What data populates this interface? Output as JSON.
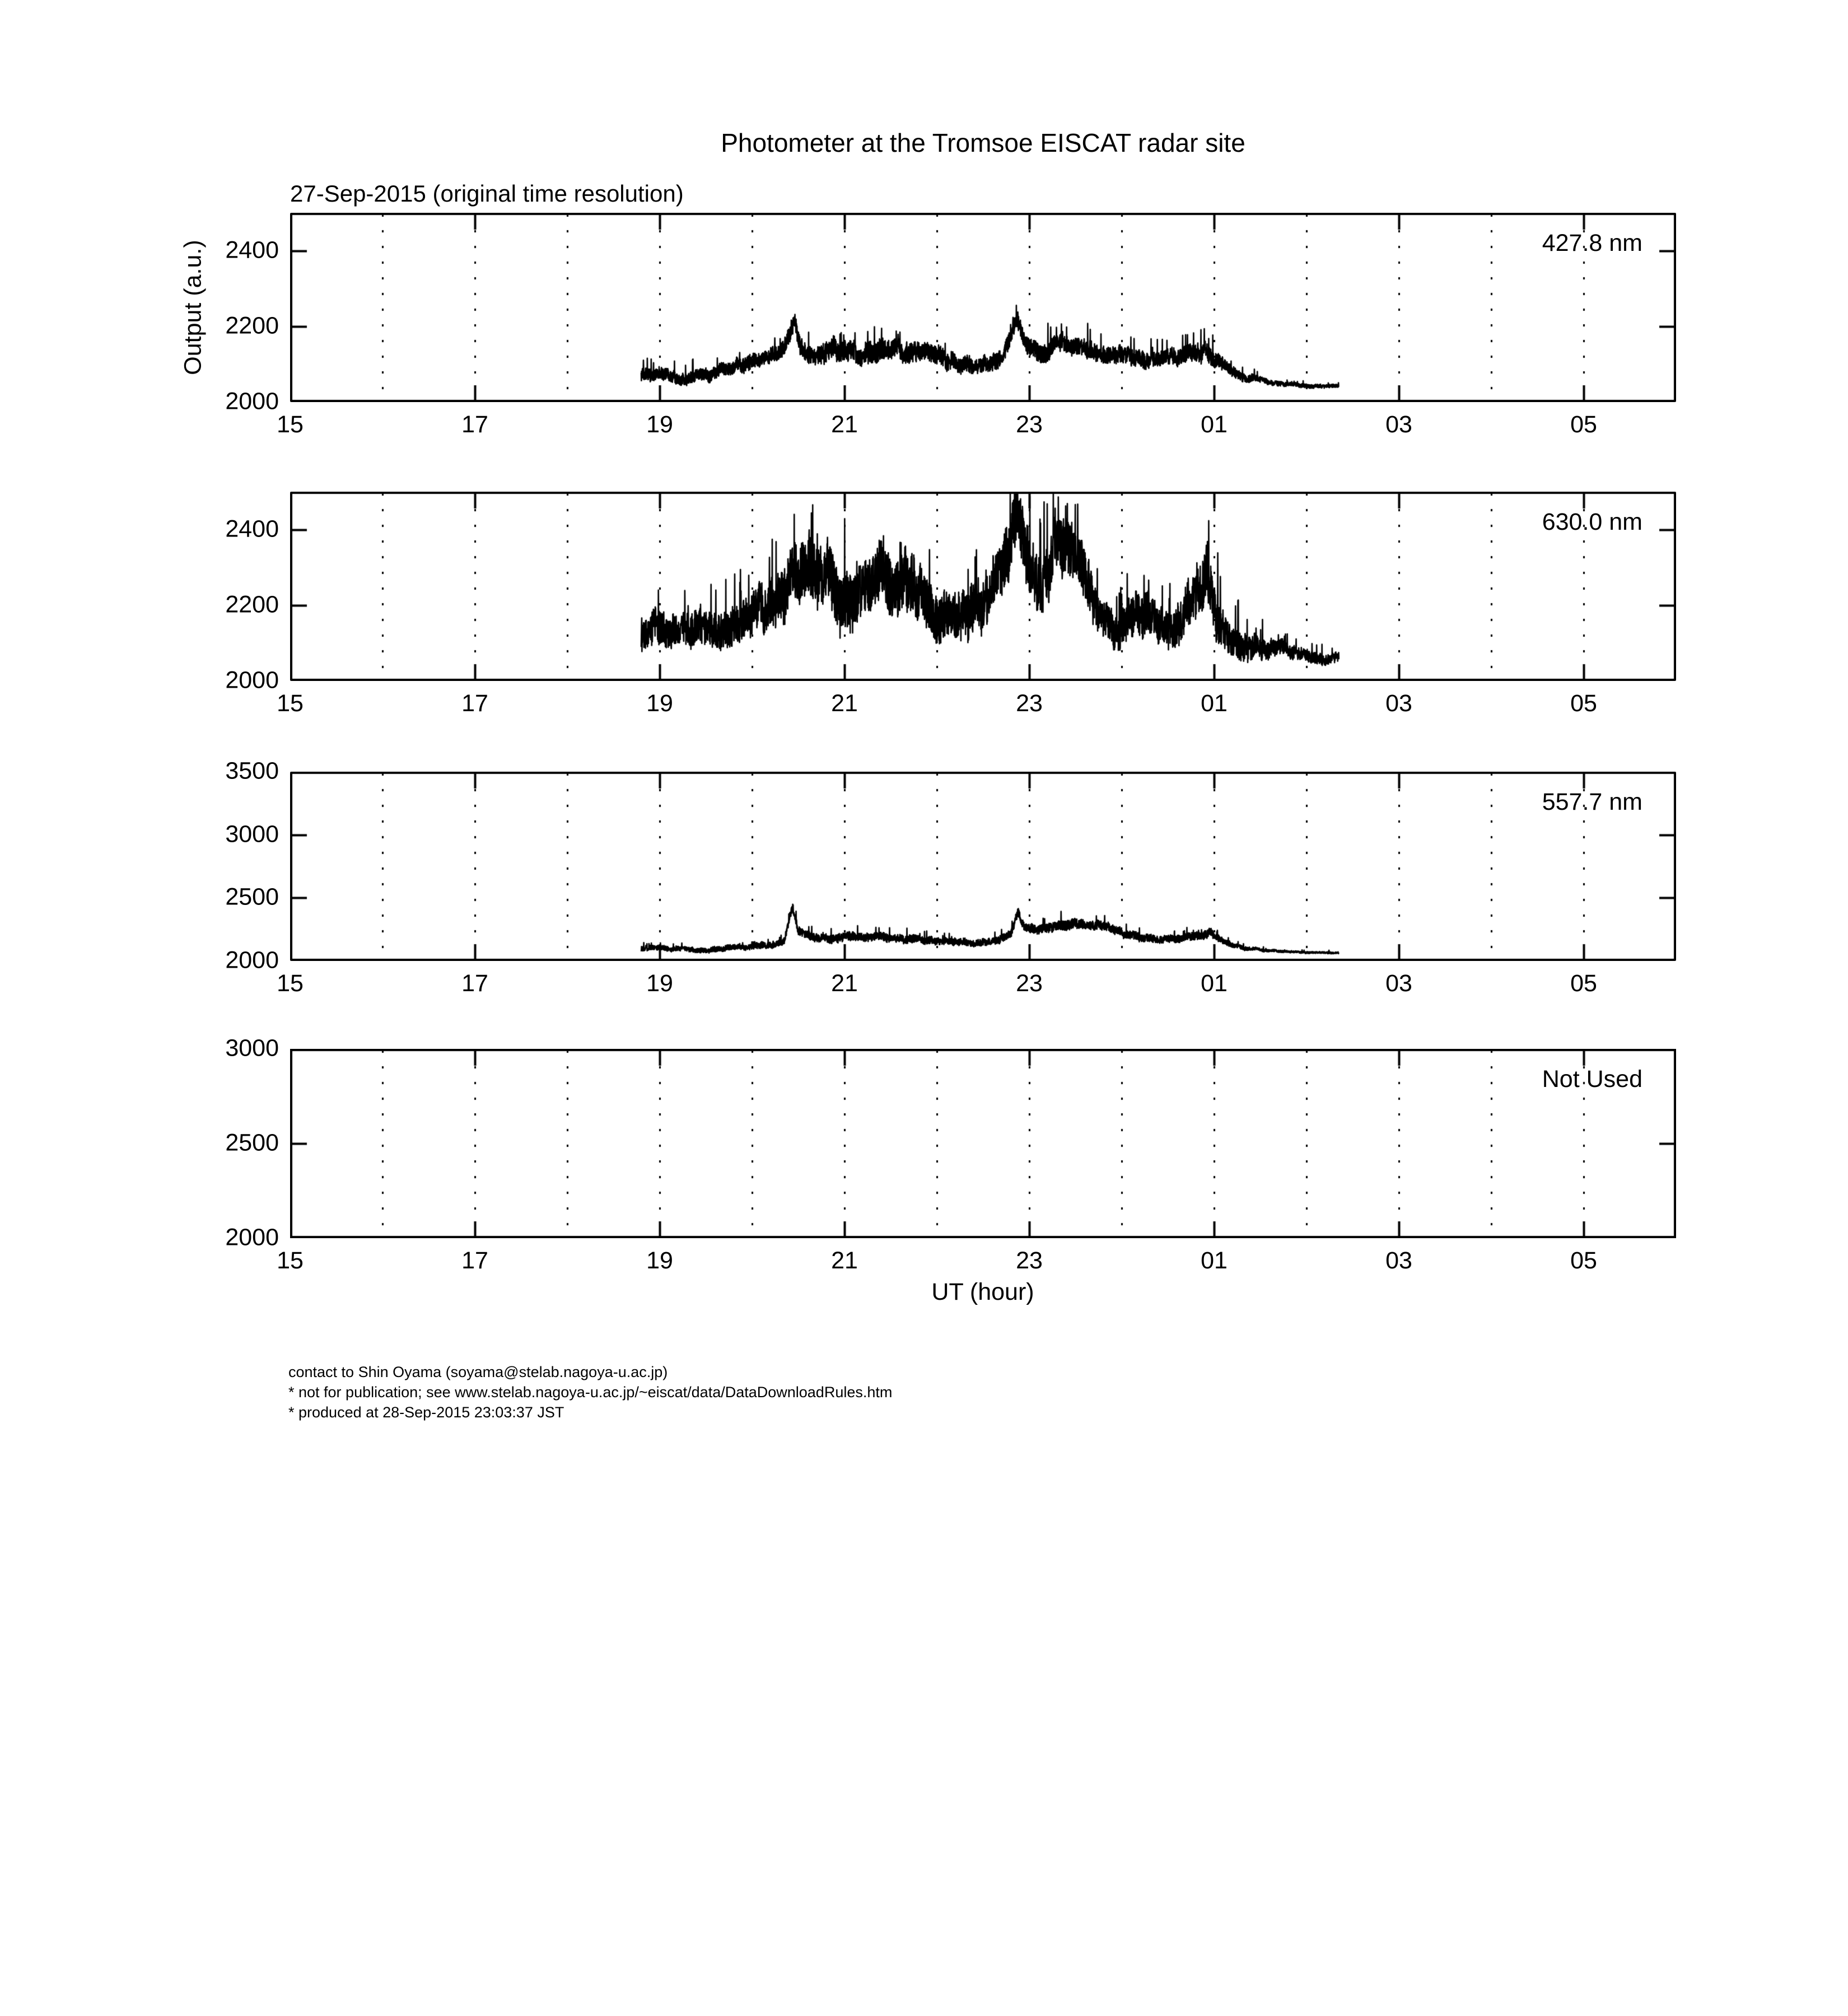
{
  "title": "Photometer at the Tromsoe EISCAT radar site",
  "subtitle": "27-Sep-2015 (original time resolution)",
  "ylabel": "Output (a.u.)",
  "xlabel": "UT (hour)",
  "footer": {
    "line1": "contact to Shin Oyama (soyama@stelab.nagoya-u.ac.jp)",
    "line2": "* not for publication; see www.stelab.nagoya-u.ac.jp/~eiscat/data/DataDownloadRules.htm",
    "line3": "* produced at 28-Sep-2015 23:03:37 JST"
  },
  "colors": {
    "trace": "#000000",
    "axes": "#000000",
    "grid": "#000000",
    "background": "#ffffff"
  },
  "chart_data": [
    {
      "type": "line",
      "panel_label": "427.8 nm",
      "xlim": [
        15,
        30
      ],
      "ylim": [
        2000,
        2500
      ],
      "yticks": [
        2000,
        2200,
        2400
      ],
      "xticks": [
        15,
        17,
        19,
        21,
        23,
        25,
        27,
        29
      ],
      "xtick_labels": [
        "15",
        "17",
        "19",
        "21",
        "23",
        "01",
        "03",
        "05"
      ],
      "grid_hours": [
        16,
        17,
        18,
        19,
        20,
        21,
        22,
        23,
        24,
        25,
        26,
        27,
        28,
        29
      ],
      "grid": "x-dotted",
      "series": {
        "name": "427.8 nm photometer output",
        "unit": "a.u.",
        "time_range_ut": [
          18.8,
          26.35
        ],
        "encoding": "[ut_hour_decimal (>24 = next day), mean_output_au, noise_half_amplitude_au]",
        "control_points": [
          [
            18.8,
            2072,
            20
          ],
          [
            19.1,
            2070,
            18
          ],
          [
            19.4,
            2072,
            18
          ],
          [
            19.7,
            2080,
            20
          ],
          [
            19.95,
            2092,
            22
          ],
          [
            20.15,
            2105,
            24
          ],
          [
            20.32,
            2125,
            26
          ],
          [
            20.42,
            2170,
            30
          ],
          [
            20.46,
            2200,
            20
          ],
          [
            20.52,
            2140,
            28
          ],
          [
            20.7,
            2120,
            30
          ],
          [
            20.9,
            2128,
            32
          ],
          [
            21.1,
            2138,
            32
          ],
          [
            21.3,
            2132,
            34
          ],
          [
            21.5,
            2140,
            30
          ],
          [
            21.7,
            2135,
            30
          ],
          [
            21.9,
            2118,
            28
          ],
          [
            22.1,
            2108,
            26
          ],
          [
            22.3,
            2098,
            26
          ],
          [
            22.5,
            2100,
            26
          ],
          [
            22.65,
            2115,
            26
          ],
          [
            22.78,
            2145,
            28
          ],
          [
            22.87,
            2210,
            22
          ],
          [
            22.95,
            2160,
            28
          ],
          [
            23.1,
            2140,
            30
          ],
          [
            23.3,
            2150,
            28
          ],
          [
            23.5,
            2155,
            26
          ],
          [
            23.7,
            2148,
            26
          ],
          [
            23.9,
            2138,
            26
          ],
          [
            24.1,
            2120,
            26
          ],
          [
            24.3,
            2112,
            24
          ],
          [
            24.5,
            2118,
            24
          ],
          [
            24.7,
            2125,
            26
          ],
          [
            24.9,
            2142,
            28
          ],
          [
            25.0,
            2120,
            24
          ],
          [
            25.15,
            2090,
            18
          ],
          [
            25.35,
            2068,
            12
          ],
          [
            25.6,
            2052,
            8
          ],
          [
            25.9,
            2044,
            6
          ],
          [
            26.35,
            2040,
            5
          ]
        ]
      }
    },
    {
      "type": "line",
      "panel_label": "630.0 nm",
      "xlim": [
        15,
        30
      ],
      "ylim": [
        2000,
        2500
      ],
      "yticks": [
        2000,
        2200,
        2400
      ],
      "xticks": [
        15,
        17,
        19,
        21,
        23,
        25,
        27,
        29
      ],
      "xtick_labels": [
        "15",
        "17",
        "19",
        "21",
        "23",
        "01",
        "03",
        "05"
      ],
      "grid_hours": [
        16,
        17,
        18,
        19,
        20,
        21,
        22,
        23,
        24,
        25,
        26,
        27,
        28,
        29
      ],
      "grid": "x-dotted",
      "series": {
        "name": "630.0 nm photometer output",
        "unit": "a.u.",
        "time_range_ut": [
          18.8,
          26.35
        ],
        "encoding": "[ut_hour_decimal (>24 = next day), mean_output_au, noise_half_amplitude_au]",
        "control_points": [
          [
            18.8,
            2128,
            52
          ],
          [
            19.1,
            2125,
            50
          ],
          [
            19.4,
            2132,
            52
          ],
          [
            19.7,
            2142,
            58
          ],
          [
            19.95,
            2158,
            62
          ],
          [
            20.15,
            2185,
            70
          ],
          [
            20.35,
            2245,
            85
          ],
          [
            20.55,
            2255,
            90
          ],
          [
            20.75,
            2265,
            92
          ],
          [
            20.95,
            2245,
            88
          ],
          [
            21.15,
            2255,
            92
          ],
          [
            21.35,
            2262,
            92
          ],
          [
            21.55,
            2250,
            90
          ],
          [
            21.75,
            2235,
            85
          ],
          [
            21.95,
            2200,
            78
          ],
          [
            22.15,
            2175,
            72
          ],
          [
            22.35,
            2190,
            75
          ],
          [
            22.55,
            2220,
            78
          ],
          [
            22.7,
            2270,
            85
          ],
          [
            22.8,
            2350,
            95
          ],
          [
            22.88,
            2420,
            90
          ],
          [
            22.96,
            2330,
            95
          ],
          [
            23.1,
            2240,
            85
          ],
          [
            23.28,
            2330,
            95
          ],
          [
            23.42,
            2310,
            92
          ],
          [
            23.58,
            2250,
            82
          ],
          [
            23.75,
            2150,
            60
          ],
          [
            23.95,
            2120,
            50
          ],
          [
            24.15,
            2190,
            70
          ],
          [
            24.35,
            2150,
            60
          ],
          [
            24.55,
            2140,
            55
          ],
          [
            24.8,
            2200,
            75
          ],
          [
            24.92,
            2250,
            85
          ],
          [
            25.02,
            2200,
            70
          ],
          [
            25.15,
            2140,
            50
          ],
          [
            25.4,
            2100,
            35
          ],
          [
            25.7,
            2080,
            24
          ],
          [
            26.0,
            2068,
            18
          ],
          [
            26.35,
            2062,
            16
          ]
        ]
      }
    },
    {
      "type": "line",
      "panel_label": "557.7 nm",
      "xlim": [
        15,
        30
      ],
      "ylim": [
        2000,
        3500
      ],
      "yticks": [
        2000,
        2500,
        3000,
        3500
      ],
      "xticks": [
        15,
        17,
        19,
        21,
        23,
        25,
        27,
        29
      ],
      "xtick_labels": [
        "15",
        "17",
        "19",
        "21",
        "23",
        "01",
        "03",
        "05"
      ],
      "grid_hours": [
        16,
        17,
        18,
        19,
        20,
        21,
        22,
        23,
        24,
        25,
        26,
        27,
        28,
        29
      ],
      "grid": "x-dotted",
      "series": {
        "name": "557.7 nm photometer output",
        "unit": "a.u.",
        "time_range_ut": [
          18.8,
          26.35
        ],
        "encoding": "[ut_hour_decimal (>24 = next day), mean_output_au, noise_half_amplitude_au]",
        "control_points": [
          [
            18.8,
            2092,
            24
          ],
          [
            19.1,
            2090,
            22
          ],
          [
            19.4,
            2092,
            22
          ],
          [
            19.7,
            2098,
            24
          ],
          [
            19.95,
            2108,
            26
          ],
          [
            20.15,
            2120,
            28
          ],
          [
            20.35,
            2150,
            32
          ],
          [
            20.44,
            2430,
            40
          ],
          [
            20.5,
            2230,
            40
          ],
          [
            20.65,
            2185,
            38
          ],
          [
            20.85,
            2190,
            38
          ],
          [
            21.05,
            2210,
            40
          ],
          [
            21.25,
            2195,
            38
          ],
          [
            21.45,
            2185,
            38
          ],
          [
            21.7,
            2175,
            36
          ],
          [
            21.95,
            2160,
            34
          ],
          [
            22.2,
            2150,
            32
          ],
          [
            22.45,
            2145,
            32
          ],
          [
            22.65,
            2170,
            34
          ],
          [
            22.8,
            2230,
            38
          ],
          [
            22.88,
            2390,
            40
          ],
          [
            22.96,
            2250,
            40
          ],
          [
            23.1,
            2230,
            40
          ],
          [
            23.3,
            2285,
            45
          ],
          [
            23.5,
            2300,
            45
          ],
          [
            23.7,
            2285,
            42
          ],
          [
            23.9,
            2255,
            40
          ],
          [
            24.1,
            2215,
            36
          ],
          [
            24.35,
            2180,
            34
          ],
          [
            24.6,
            2185,
            34
          ],
          [
            24.85,
            2195,
            36
          ],
          [
            24.97,
            2215,
            38
          ],
          [
            25.1,
            2150,
            26
          ],
          [
            25.35,
            2100,
            16
          ],
          [
            25.6,
            2080,
            10
          ],
          [
            26.0,
            2068,
            8
          ],
          [
            26.35,
            2065,
            8
          ]
        ]
      }
    },
    {
      "type": "line",
      "panel_label": "Not Used",
      "xlim": [
        15,
        30
      ],
      "ylim": [
        2000,
        3000
      ],
      "yticks": [
        2000,
        2500,
        3000
      ],
      "xticks": [
        15,
        17,
        19,
        21,
        23,
        25,
        27,
        29
      ],
      "xtick_labels": [
        "15",
        "17",
        "19",
        "21",
        "23",
        "01",
        "03",
        "05"
      ],
      "grid_hours": [
        16,
        17,
        18,
        19,
        20,
        21,
        22,
        23,
        24,
        25,
        26,
        27,
        28,
        29
      ],
      "grid": "x-dotted",
      "series": null
    }
  ]
}
